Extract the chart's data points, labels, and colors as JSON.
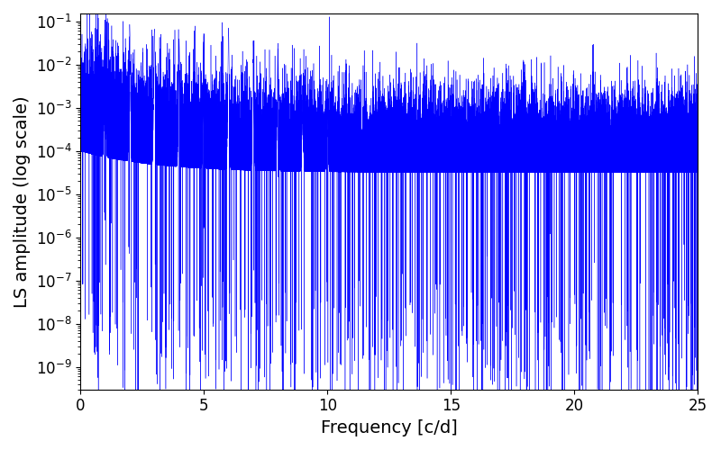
{
  "xlabel": "Frequency [c/d]",
  "ylabel": "LS amplitude (log scale)",
  "line_color": "#0000ff",
  "xlim": [
    0,
    25
  ],
  "ylim": [
    3e-10,
    0.15
  ],
  "background_color": "#ffffff",
  "figsize": [
    8.0,
    5.0
  ],
  "dpi": 100,
  "seed": 777,
  "tick_fontsize": 12,
  "label_fontsize": 14,
  "n_points": 50000
}
